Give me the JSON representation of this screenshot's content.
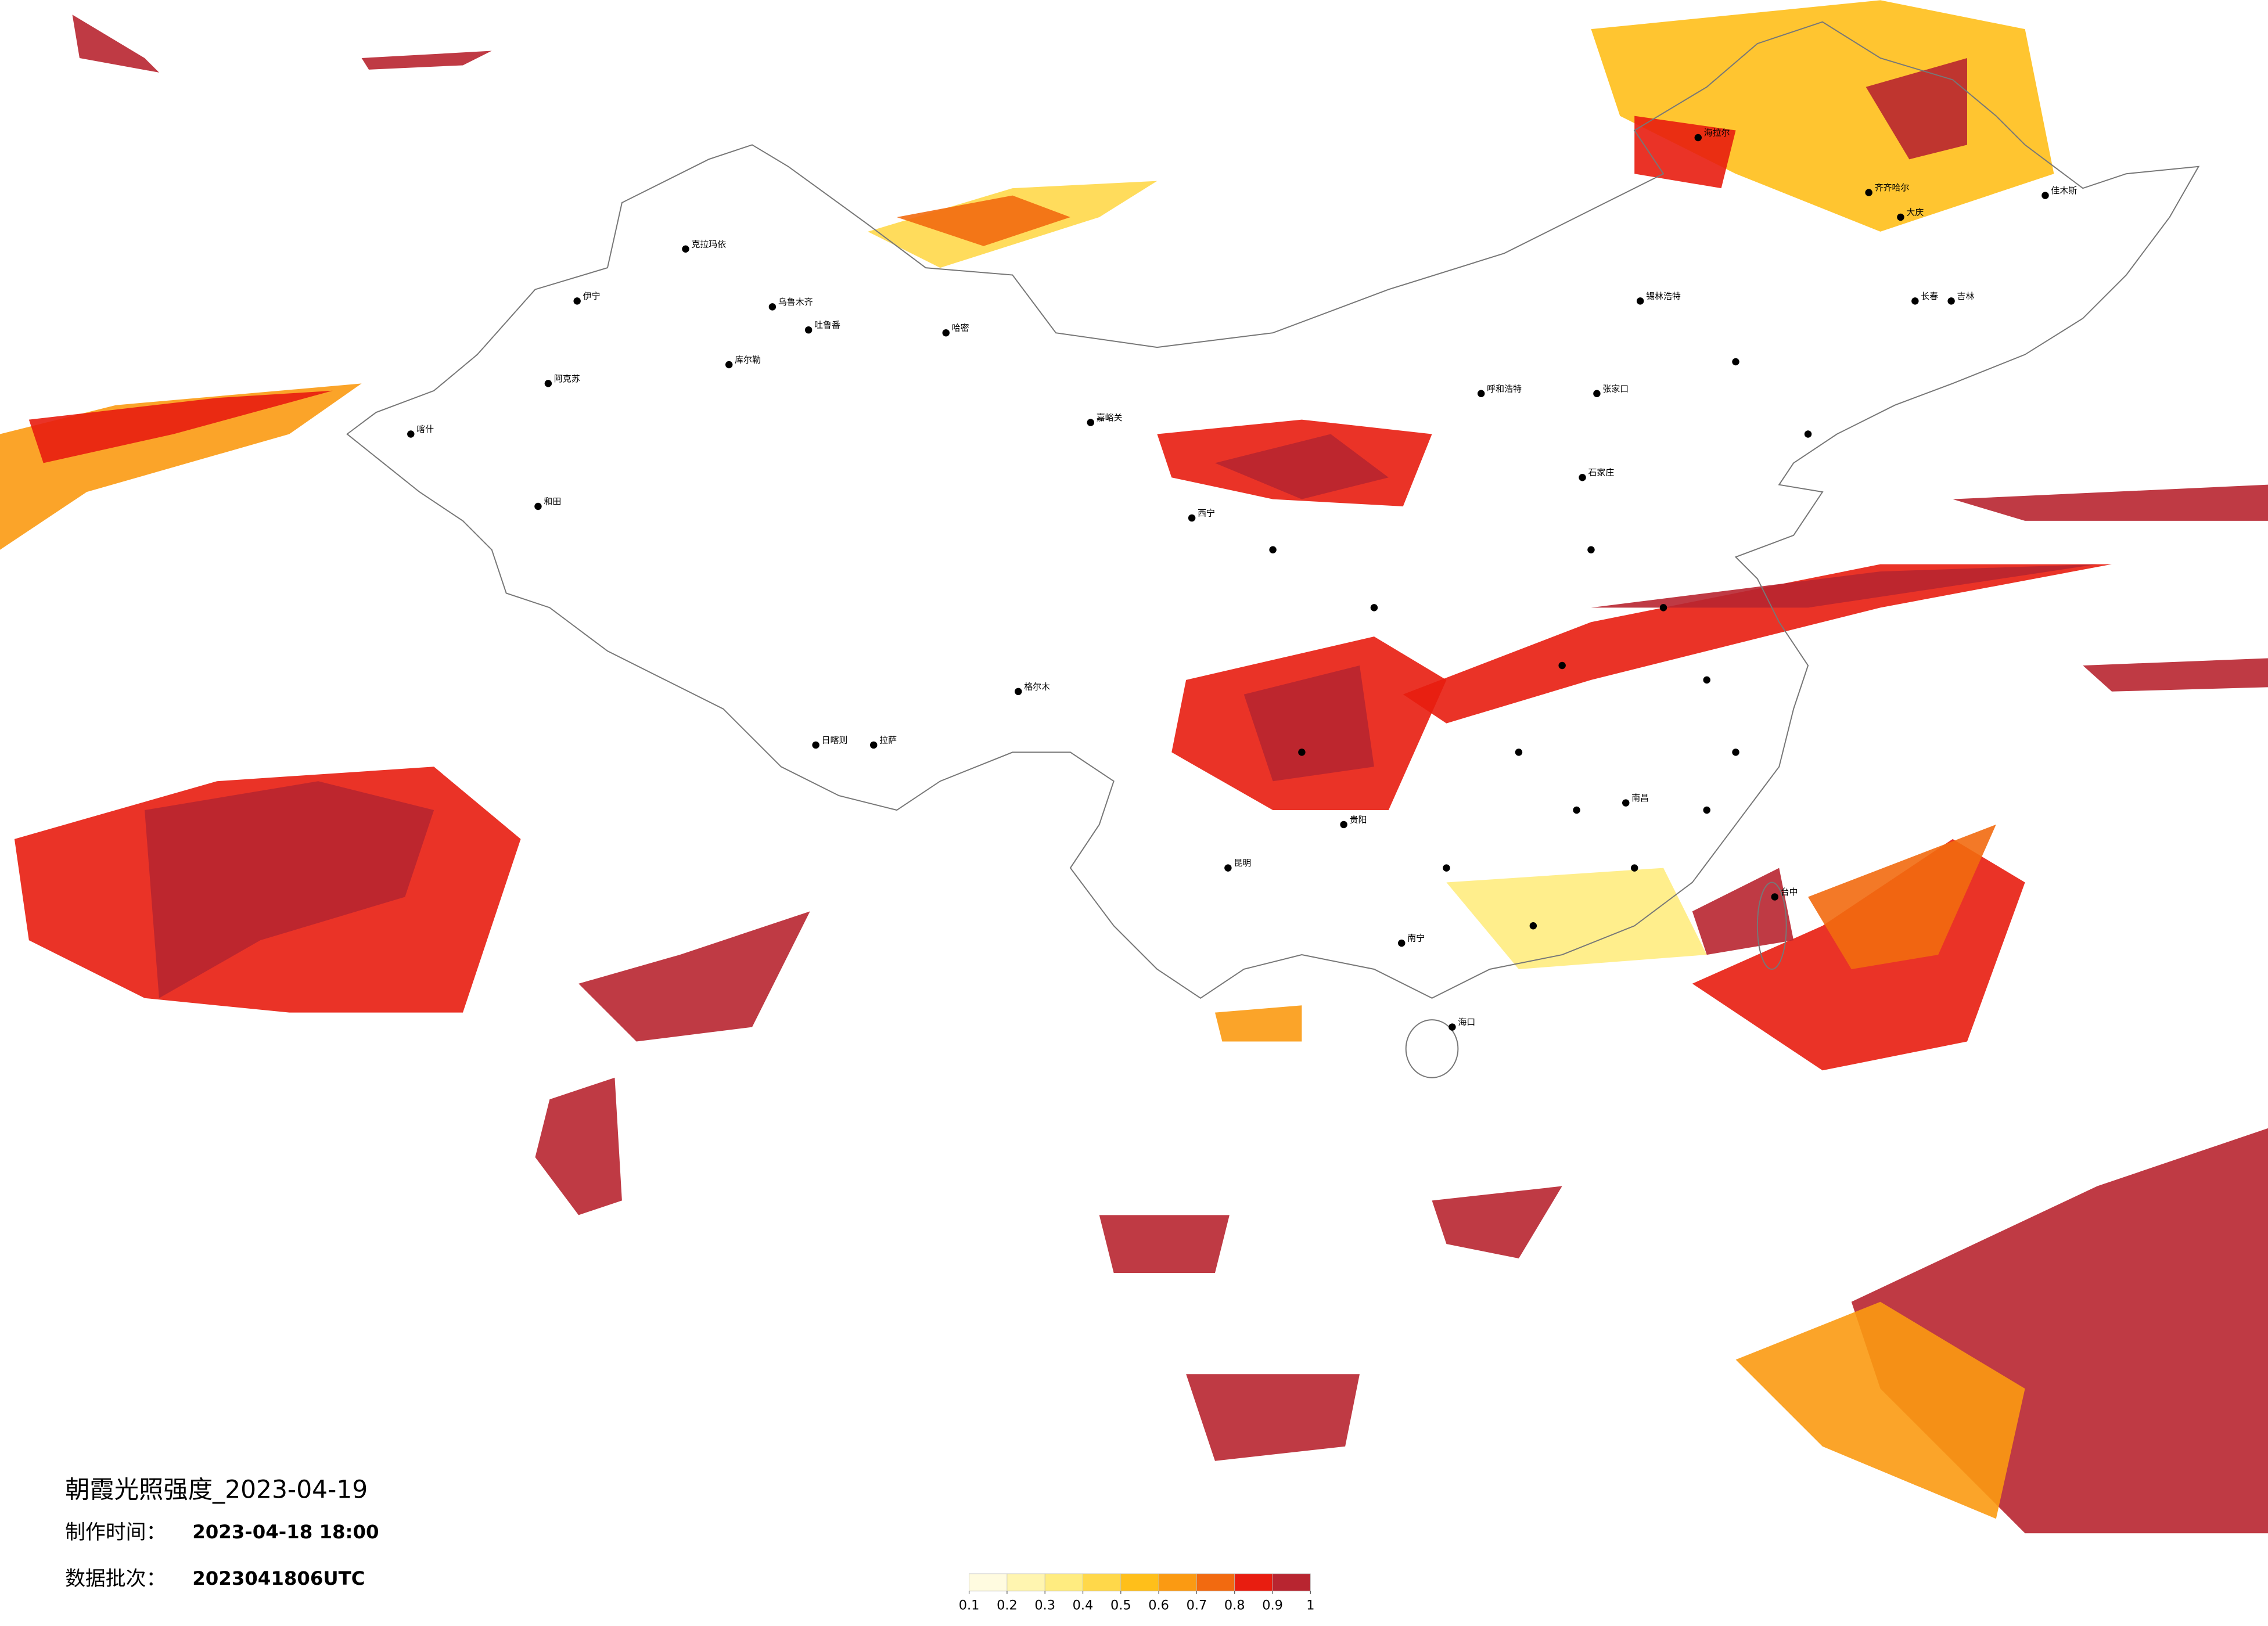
{
  "title": "朝霞光照强度_2023-04-19",
  "production_label": "制作时间：",
  "production_time": "2023-04-18 18:00",
  "batch_label": "数据批次：",
  "batch": "2023041806UTC",
  "colorbar": {
    "ticks": [
      0.1,
      0.2,
      0.3,
      0.4,
      0.5,
      0.6,
      0.7,
      0.8,
      0.9,
      1
    ],
    "colors": [
      "#fffbe0",
      "#fff5b0",
      "#ffec80",
      "#ffd84a",
      "#ffbf1a",
      "#fb9a12",
      "#f26a10",
      "#e81d10",
      "#b82530"
    ]
  },
  "cities": [
    "克拉玛依",
    "乌鲁木齐",
    "吐鲁番",
    "哈密",
    "伊宁",
    "阿克苏",
    "喀什",
    "和田",
    "库尔勒",
    "嘉峪关",
    "锡林浩特",
    "呼和浩特",
    "张家口",
    "海拉尔",
    "齐齐哈尔",
    "大庆",
    "长春",
    "吉林",
    "石家庄",
    "西宁",
    "拉萨",
    "日喀则",
    "格尔木",
    "贵阳",
    "昆明",
    "南宁",
    "海口",
    "南昌",
    "台中",
    "佳木斯"
  ]
}
